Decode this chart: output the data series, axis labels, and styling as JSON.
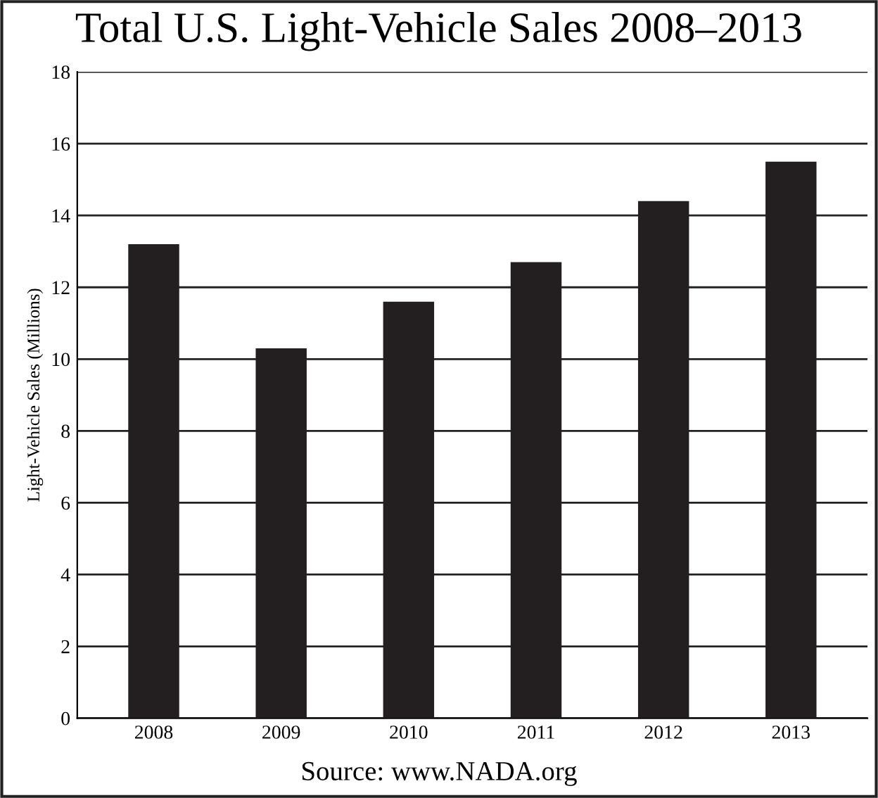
{
  "chart_data": {
    "type": "bar",
    "title": "Total U.S. Light-Vehicle Sales 2008–2013",
    "ylabel": "Light-Vehicle Sales (Millions)",
    "categories": [
      "2008",
      "2009",
      "2010",
      "2011",
      "2012",
      "2013"
    ],
    "values": [
      13.2,
      10.3,
      11.6,
      12.7,
      14.4,
      15.5
    ],
    "color": "#231f20",
    "ylim": [
      0,
      18
    ],
    "yticks": [
      0,
      2,
      4,
      6,
      8,
      10,
      12,
      14,
      16,
      18
    ],
    "grid": "y",
    "legend": false,
    "annotations": [
      "Source: www.NADA.org"
    ]
  }
}
